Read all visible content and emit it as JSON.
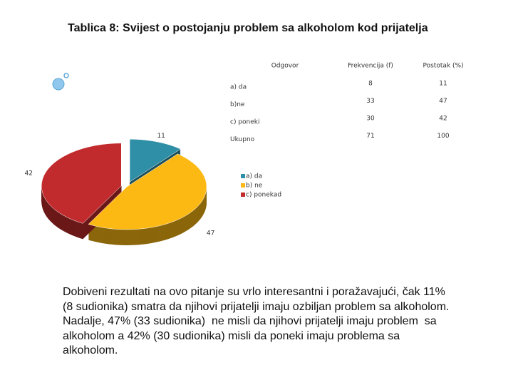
{
  "title": "Tablica 8: Svijest o postojanju problem sa alkoholom kod prijatelja",
  "table": {
    "header": [
      "Odgovor",
      "Frekvencija (f)",
      "Postotak (%)"
    ],
    "rows": [
      [
        "a) da",
        "8",
        "11"
      ],
      [
        "b)ne",
        "33",
        "47"
      ],
      [
        "c) poneki",
        "30",
        "42"
      ],
      [
        "Ukupno",
        "71",
        "100"
      ]
    ]
  },
  "chart_data": {
    "type": "pie",
    "categories": [
      "a) da",
      "b) ne",
      "c) ponekad"
    ],
    "values": [
      11,
      47,
      42
    ],
    "colors": [
      "#2f8fa6",
      "#fdb913",
      "#c22b2e"
    ],
    "legend": "right"
  },
  "paragraph": [
    "Dobiveni rezultati na ovo pitanje su vrlo interesantni i poražavajući, čak 11%",
    "(8 sudionika) smatra da njihovi prijatelji imaju ozbiljan problem sa alkoholom.",
    "Nadalje, 47% (33 sudionika)  ne misli da njihovi prijatelji imaju problem  sa",
    "alkoholom a 42% (30 sudionika) misli da poneki imaju problema sa",
    "alkoholom."
  ]
}
